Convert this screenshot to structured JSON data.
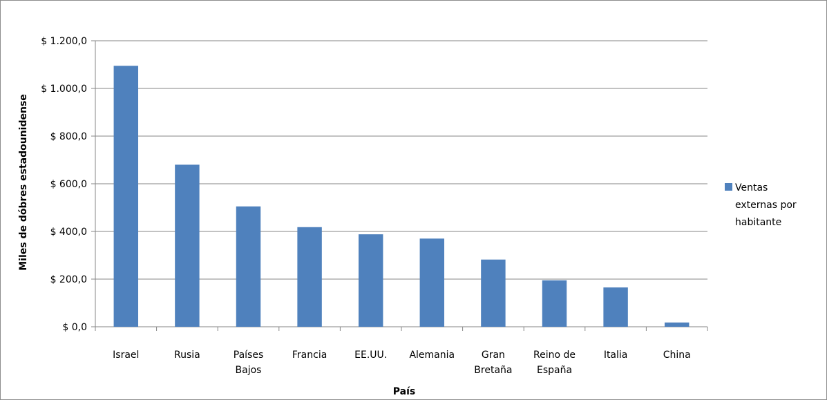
{
  "chart_data": {
    "type": "bar",
    "categories": [
      [
        "Israel"
      ],
      [
        "Rusia"
      ],
      [
        "Países",
        "Bajos"
      ],
      [
        "Francia"
      ],
      [
        "EE.UU."
      ],
      [
        "Alemania"
      ],
      [
        "Gran",
        "Bretaña"
      ],
      [
        "Reino de",
        "España"
      ],
      [
        "Italia"
      ],
      [
        "China"
      ]
    ],
    "series": [
      {
        "name": "Ventas externas por habitante",
        "color": "#4f81bd",
        "values": [
          1095,
          680,
          505,
          418,
          388,
          370,
          282,
          195,
          165,
          18
        ]
      }
    ],
    "xlabel": "País",
    "ylabel": "Miles de dóbres estadounidense",
    "ylim": [
      0,
      1200
    ],
    "yticks": [
      0,
      200,
      400,
      600,
      800,
      1000,
      1200
    ],
    "ytick_labels": [
      "$ 0,0",
      "$ 200,0",
      "$ 400,0",
      "$ 600,0",
      "$ 800,0",
      "$ 1.000,0",
      "$ 1.200,0"
    ],
    "grid": true,
    "legend_position": "right",
    "legend_lines": [
      "Ventas",
      "externas por",
      "habitante"
    ]
  }
}
